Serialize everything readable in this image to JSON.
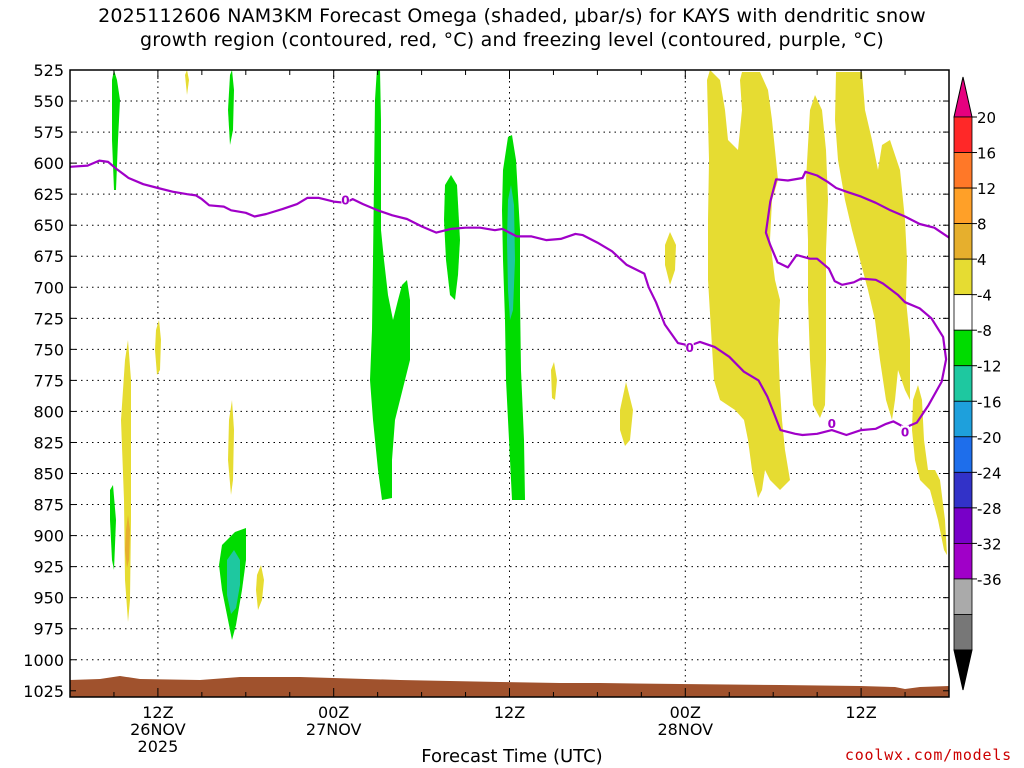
{
  "chart_data": {
    "type": "heatmap",
    "title_line1": "2025112606 NAM3KM Forecast Omega (shaded, μbar/s) for KAYS with dendritic snow",
    "title_line2": "growth region (contoured, red, °C) and freezing level (contoured, purple, °C)",
    "xlabel": "Forecast Time (UTC)",
    "credit": "coolwx.com/models",
    "x_range_hours": [
      0,
      60
    ],
    "x_ticks": [
      {
        "hour": 6,
        "lines": [
          "12Z",
          "26NOV",
          "2025"
        ]
      },
      {
        "hour": 18,
        "lines": [
          "00Z",
          "27NOV"
        ]
      },
      {
        "hour": 30,
        "lines": [
          "12Z",
          ""
        ]
      },
      {
        "hour": 42,
        "lines": [
          "00Z",
          "28NOV"
        ]
      },
      {
        "hour": 54,
        "lines": [
          "12Z",
          ""
        ]
      }
    ],
    "y_axis_pressure_hPa": [
      525,
      550,
      575,
      600,
      625,
      650,
      675,
      700,
      725,
      750,
      775,
      800,
      825,
      850,
      875,
      900,
      925,
      950,
      975,
      1000,
      1025
    ],
    "y_range": [
      525,
      1030
    ],
    "grid": true,
    "colorbar": {
      "labels": [
        "20",
        "16",
        "12",
        "8",
        "4",
        "-4",
        "-8",
        "-12",
        "-16",
        "-20",
        "-24",
        "-28",
        "-32",
        "-36"
      ],
      "colors": [
        "#ff2828",
        "#ff7828",
        "#ffa028",
        "#e6af2d",
        "#e6dc32",
        "#ffffff",
        "#00dc00",
        "#1ec8a0",
        "#1ea0dc",
        "#1e6eeb",
        "#3232c8",
        "#7800c8",
        "#a000c8",
        "#aaaaaa",
        "#777777"
      ],
      "top_color": "#e6007f",
      "bottom_color": "#000000"
    },
    "freezing_level": {
      "label": "0",
      "color": "#a000c8",
      "points": [
        [
          0,
          603
        ],
        [
          1.2,
          602
        ],
        [
          2,
          598
        ],
        [
          2.6,
          599
        ],
        [
          3.2,
          605
        ],
        [
          4,
          612
        ],
        [
          5,
          617
        ],
        [
          6,
          620
        ],
        [
          7,
          623
        ],
        [
          8,
          625
        ],
        [
          8.6,
          626
        ],
        [
          9,
          629
        ],
        [
          9.5,
          634
        ],
        [
          10.5,
          635
        ],
        [
          11,
          638
        ],
        [
          12,
          640
        ],
        [
          12.6,
          643
        ],
        [
          13.4,
          641
        ],
        [
          14.5,
          637
        ],
        [
          15.5,
          633
        ],
        [
          16.2,
          628
        ],
        [
          17,
          628
        ],
        [
          18,
          631
        ],
        [
          18.8,
          632
        ],
        [
          19.3,
          629
        ],
        [
          20,
          633
        ],
        [
          21,
          638
        ],
        [
          22,
          642
        ],
        [
          23,
          645
        ],
        [
          24,
          651
        ],
        [
          25,
          656
        ],
        [
          26,
          653
        ],
        [
          27,
          652
        ],
        [
          28,
          652
        ],
        [
          29,
          654
        ],
        [
          29.5,
          653
        ],
        [
          30.5,
          659
        ],
        [
          31.5,
          659
        ],
        [
          32.5,
          662
        ],
        [
          33.5,
          661
        ],
        [
          34.5,
          657
        ],
        [
          35,
          658
        ],
        [
          36,
          664
        ],
        [
          37,
          671
        ],
        [
          38,
          682
        ],
        [
          39.2,
          689
        ],
        [
          39.5,
          700
        ],
        [
          40,
          712
        ],
        [
          40.6,
          730
        ],
        [
          41.5,
          745
        ],
        [
          42.3,
          747
        ],
        [
          43,
          744
        ],
        [
          44,
          748
        ],
        [
          45,
          756
        ],
        [
          46,
          768
        ],
        [
          47,
          775
        ],
        [
          47.6,
          788
        ],
        [
          48,
          800
        ],
        [
          48.5,
          815
        ],
        [
          49.5,
          818
        ],
        [
          50,
          819
        ],
        [
          51,
          818
        ],
        [
          52,
          815
        ],
        [
          53,
          819
        ],
        [
          54,
          815
        ],
        [
          55,
          814
        ],
        [
          55.7,
          810
        ],
        [
          56.2,
          808
        ],
        [
          57,
          813
        ],
        [
          57.8,
          809
        ],
        [
          58.6,
          795
        ],
        [
          59.5,
          776
        ],
        [
          59.8,
          758
        ],
        [
          59.6,
          740
        ],
        [
          58.8,
          725
        ],
        [
          58,
          717
        ],
        [
          57,
          712
        ],
        [
          56.5,
          706
        ],
        [
          55.5,
          697
        ],
        [
          55,
          694
        ],
        [
          54,
          693
        ],
        [
          53.5,
          696
        ],
        [
          52.7,
          698
        ],
        [
          52.2,
          695
        ],
        [
          51.8,
          685
        ],
        [
          51,
          677
        ],
        [
          50.5,
          677
        ],
        [
          49.6,
          674
        ],
        [
          49,
          684
        ],
        [
          48.3,
          680
        ],
        [
          47.8,
          666
        ],
        [
          47.5,
          656
        ],
        [
          47.8,
          631
        ],
        [
          48.2,
          613
        ],
        [
          49,
          614
        ],
        [
          50,
          612
        ],
        [
          50.2,
          607
        ],
        [
          51,
          610
        ],
        [
          51.7,
          615
        ],
        [
          52.3,
          620
        ],
        [
          53,
          623
        ],
        [
          54,
          627
        ],
        [
          55,
          632
        ],
        [
          56,
          638
        ],
        [
          57,
          643
        ],
        [
          58,
          649
        ],
        [
          59,
          652
        ],
        [
          60,
          660
        ]
      ]
    },
    "freezing_level_labels": [
      [
        18.8,
        630
      ],
      [
        42.3,
        749
      ],
      [
        52,
        810
      ],
      [
        57,
        817
      ]
    ]
  }
}
